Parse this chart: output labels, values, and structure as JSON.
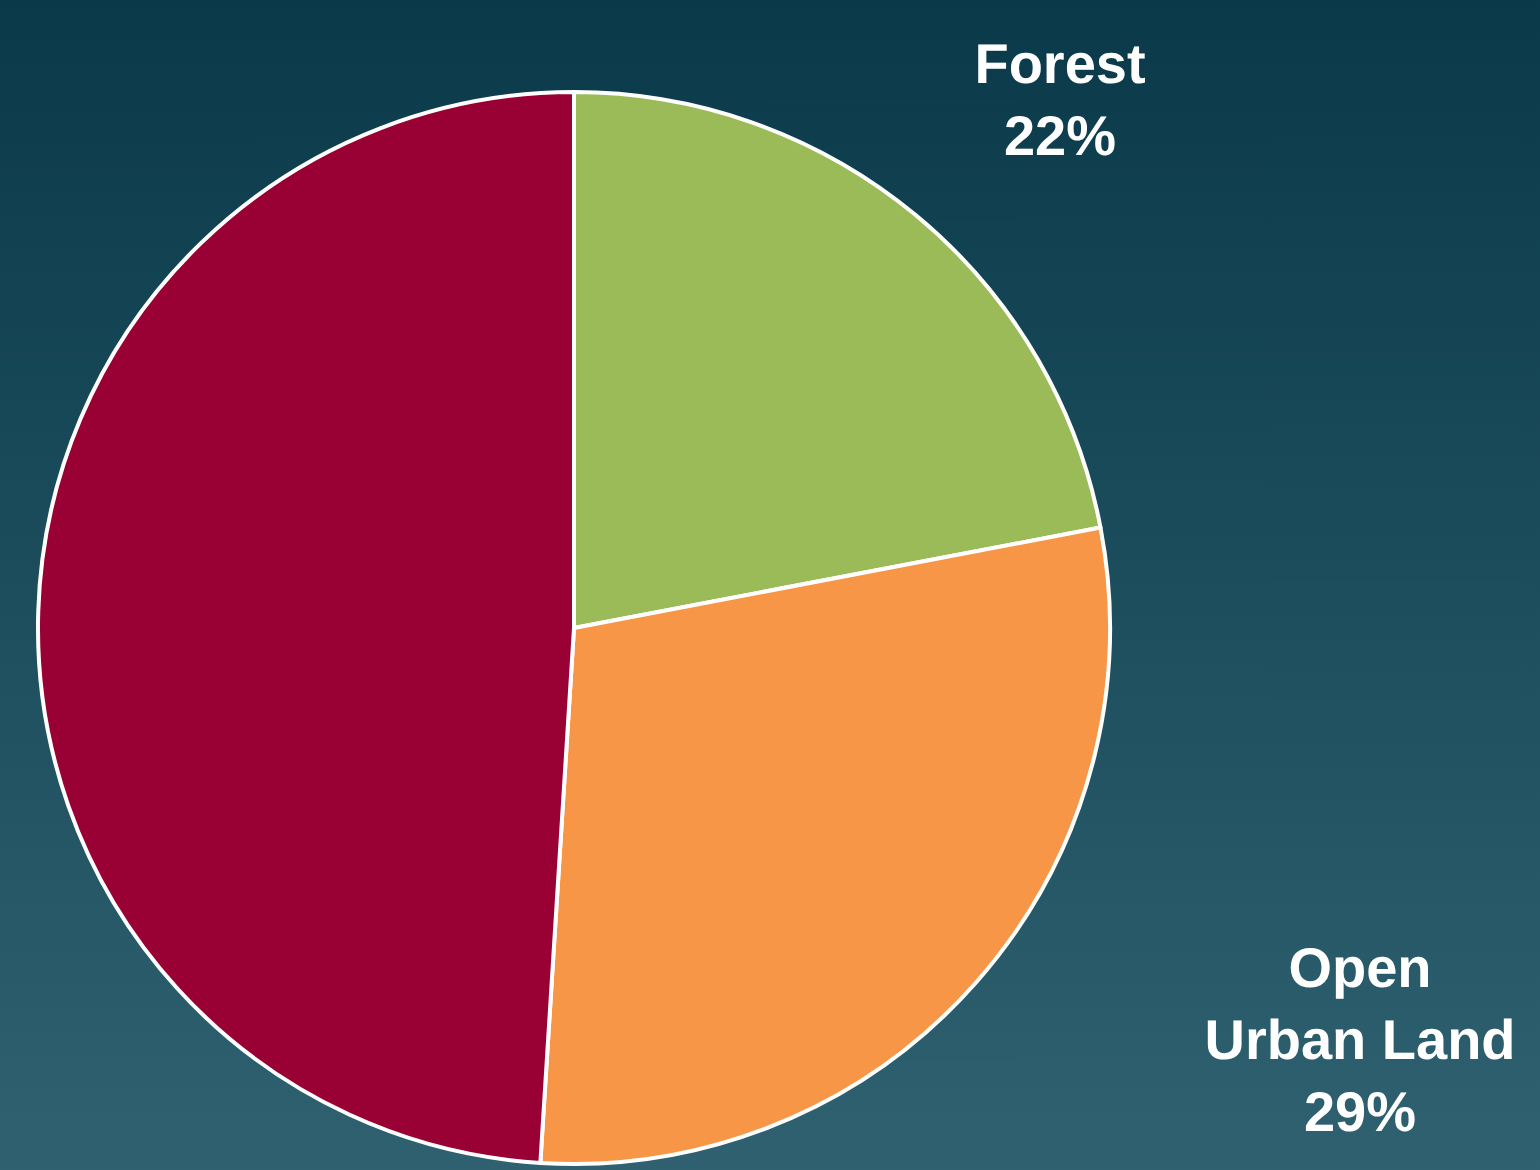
{
  "chart_data": {
    "type": "pie",
    "categories": [
      "Forest",
      "Open Urban Land",
      null
    ],
    "values": [
      22,
      29,
      49
    ],
    "colors": [
      "#9bbb59",
      "#f79646",
      "#990033"
    ],
    "value_labels": [
      "22%",
      "29%",
      null
    ],
    "legend": false
  }
}
